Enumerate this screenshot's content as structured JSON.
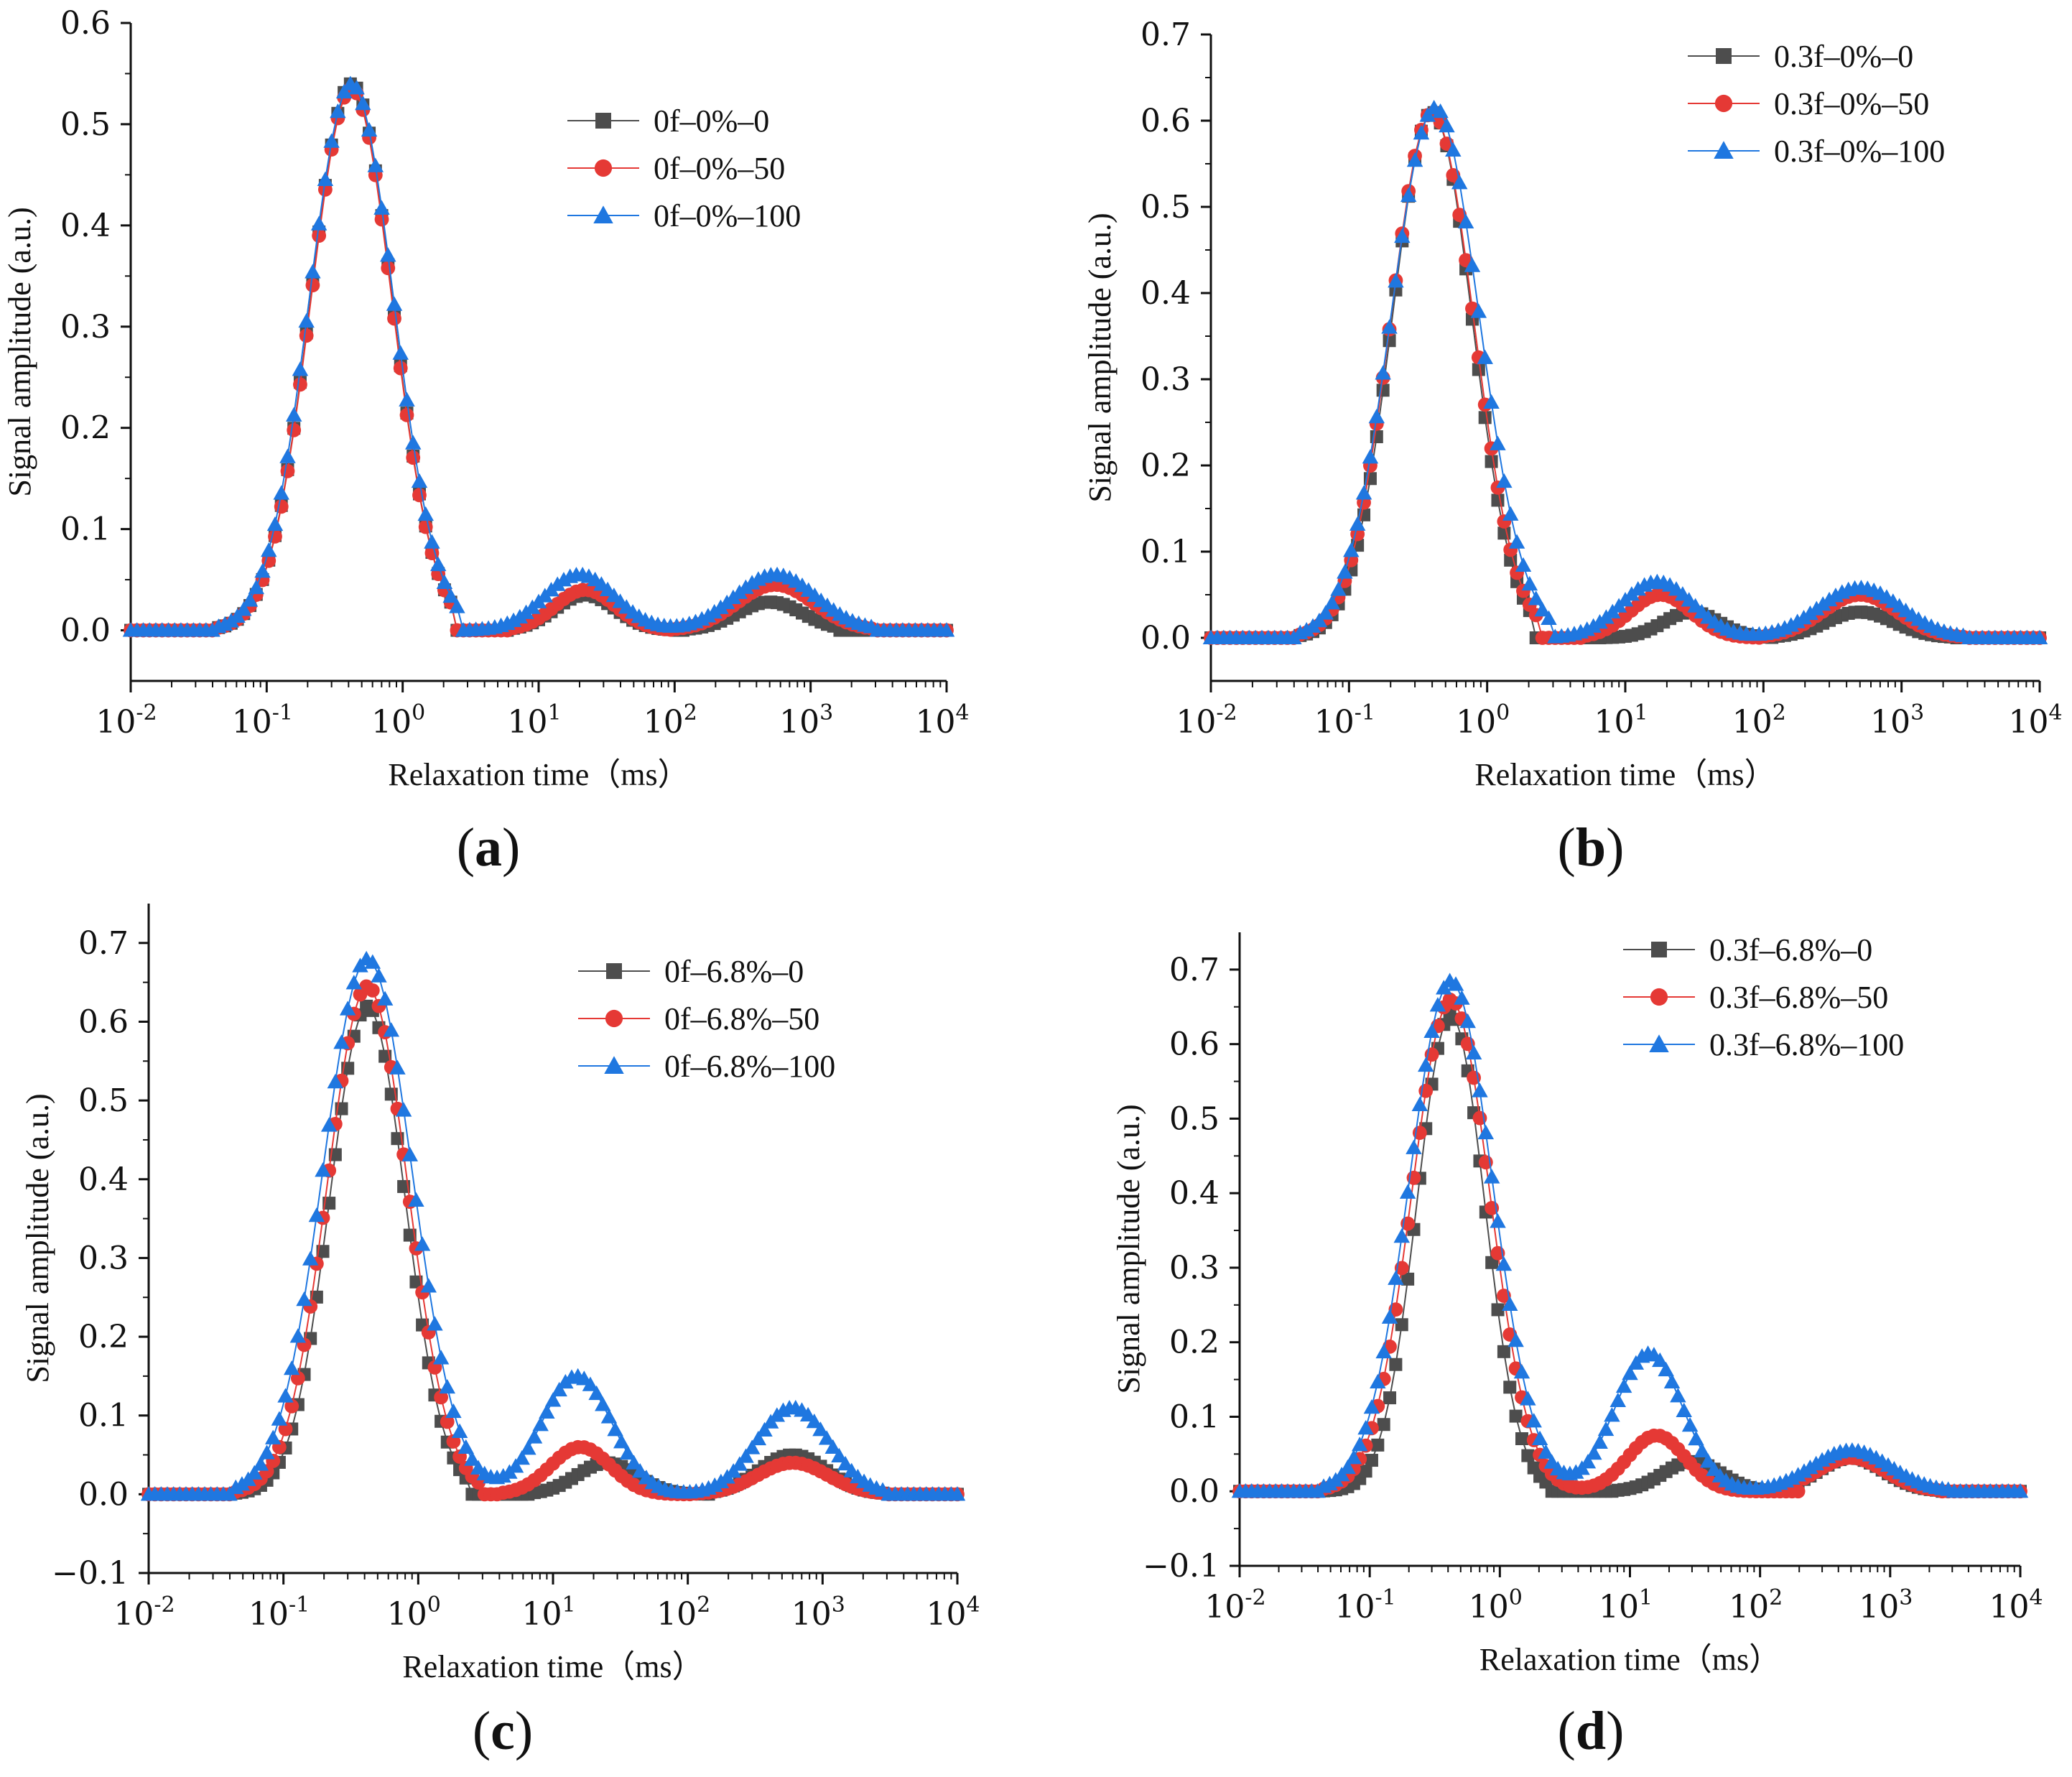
{
  "colors": {
    "series_0": "#4d4d4d",
    "series_50": "#e53935",
    "series_100": "#1f77e0"
  },
  "chart_data": [
    {
      "id": "a",
      "type": "scatter",
      "panel_label": "a",
      "xscale": "log",
      "xlim": [
        0.01,
        10000
      ],
      "ylim": [
        -0.05,
        0.6
      ],
      "yticks": [
        0,
        0.1,
        0.2,
        0.3,
        0.4,
        0.5,
        0.6
      ],
      "xlabel": "Relaxation time（ms）",
      "ylabel": "Signal amplitude (a.u.)",
      "legend_position": "top-right",
      "series": [
        {
          "name": "0f–0%–0",
          "marker": "square",
          "color": "#4d4d4d",
          "peaks": [
            {
              "x": 0.42,
              "amp": 0.54,
              "w": 0.3,
              "lo": 0.04,
              "hi": 2.3
            },
            {
              "x": 22,
              "amp": 0.035,
              "w": 0.22,
              "lo": 6,
              "hi": 100
            },
            {
              "x": 500,
              "amp": 0.028,
              "w": 0.24,
              "lo": 120,
              "hi": 1500
            }
          ]
        },
        {
          "name": "0f–0%–50",
          "marker": "circle",
          "color": "#e53935",
          "peaks": [
            {
              "x": 0.42,
              "amp": 0.535,
              "w": 0.3,
              "lo": 0.04,
              "hi": 2.3
            },
            {
              "x": 22,
              "amp": 0.04,
              "w": 0.22,
              "lo": 6,
              "hi": 100
            },
            {
              "x": 550,
              "amp": 0.045,
              "w": 0.28,
              "lo": 100,
              "hi": 3000
            }
          ]
        },
        {
          "name": "0f–0%–100",
          "marker": "triangle",
          "color": "#1f77e0",
          "peaks": [
            {
              "x": 0.42,
              "amp": 0.54,
              "w": 0.31,
              "lo": 0.04,
              "hi": 2.6
            },
            {
              "x": 20,
              "amp": 0.055,
              "w": 0.26,
              "lo": 3,
              "hi": 3000
            },
            {
              "x": 550,
              "amp": 0.055,
              "w": 0.3,
              "lo": 3,
              "hi": 3000
            }
          ]
        }
      ]
    },
    {
      "id": "b",
      "type": "scatter",
      "panel_label": "b",
      "xscale": "log",
      "xlim": [
        0.01,
        10000
      ],
      "ylim": [
        -0.05,
        0.7
      ],
      "yticks": [
        0,
        0.1,
        0.2,
        0.3,
        0.4,
        0.5,
        0.6,
        0.7
      ],
      "xlabel": "Relaxation time（ms）",
      "ylabel": "Signal amplitude (a.u.)",
      "legend_position": "top-right",
      "series": [
        {
          "name": "0.3f–0%–0",
          "marker": "square",
          "color": "#4d4d4d",
          "peaks": [
            {
              "x": 0.4,
              "amp": 0.61,
              "w": 0.29,
              "lo": 0.04,
              "hi": 2.1
            },
            {
              "x": 30,
              "amp": 0.03,
              "w": 0.2,
              "lo": 7,
              "hi": 120
            },
            {
              "x": 500,
              "amp": 0.03,
              "w": 0.25,
              "lo": 120,
              "hi": 2500
            }
          ]
        },
        {
          "name": "0.3f–0%–50",
          "marker": "circle",
          "color": "#e53935",
          "peaks": [
            {
              "x": 0.4,
              "amp": 0.61,
              "w": 0.3,
              "lo": 0.04,
              "hi": 2.5
            },
            {
              "x": 18,
              "amp": 0.05,
              "w": 0.22,
              "lo": 5,
              "hi": 100
            },
            {
              "x": 500,
              "amp": 0.05,
              "w": 0.27,
              "lo": 100,
              "hi": 3000
            }
          ]
        },
        {
          "name": "0.3f–0%–100",
          "marker": "triangle",
          "color": "#1f77e0",
          "peaks": [
            {
              "x": 0.42,
              "amp": 0.615,
              "w": 0.32,
              "lo": 0.04,
              "hi": 2.8
            },
            {
              "x": 17,
              "amp": 0.065,
              "w": 0.26,
              "lo": 3,
              "hi": 3000
            },
            {
              "x": 500,
              "amp": 0.058,
              "w": 0.3,
              "lo": 3,
              "hi": 3000
            }
          ]
        }
      ]
    },
    {
      "id": "c",
      "type": "scatter",
      "panel_label": "c",
      "xscale": "log",
      "xlim": [
        0.01,
        10000
      ],
      "ylim": [
        -0.1,
        0.75
      ],
      "yticks": [
        -0.1,
        0,
        0.1,
        0.2,
        0.3,
        0.4,
        0.5,
        0.6,
        0.7
      ],
      "xlabel": "Relaxation time（ms）",
      "ylabel": "Signal amplitude (a.u.)",
      "legend_position": "top-right",
      "series": [
        {
          "name": "0f–6.8%–0",
          "marker": "square",
          "color": "#4d4d4d",
          "peaks": [
            {
              "x": 0.42,
              "amp": 0.62,
              "w": 0.28,
              "lo": 0.04,
              "hi": 2.5
            },
            {
              "x": 25,
              "amp": 0.04,
              "w": 0.22,
              "lo": 7,
              "hi": 150
            },
            {
              "x": 600,
              "amp": 0.05,
              "w": 0.25,
              "lo": 150,
              "hi": 3000
            }
          ]
        },
        {
          "name": "0f–6.8%–50",
          "marker": "circle",
          "color": "#e53935",
          "peaks": [
            {
              "x": 0.42,
              "amp": 0.645,
              "w": 0.3,
              "lo": 0.04,
              "hi": 2.9
            },
            {
              "x": 16,
              "amp": 0.06,
              "w": 0.22,
              "lo": 4,
              "hi": 110
            },
            {
              "x": 600,
              "amp": 0.04,
              "w": 0.26,
              "lo": 110,
              "hi": 3000
            }
          ]
        },
        {
          "name": "0f–6.8%–100",
          "marker": "triangle",
          "color": "#1f77e0",
          "peaks": [
            {
              "x": 0.42,
              "amp": 0.68,
              "w": 0.33,
              "lo": 0.04,
              "hi": 3000
            },
            {
              "x": 15,
              "amp": 0.15,
              "w": 0.26,
              "lo": 0.04,
              "hi": 3000
            },
            {
              "x": 600,
              "amp": 0.11,
              "w": 0.27,
              "lo": 0.04,
              "hi": 3000
            }
          ]
        }
      ]
    },
    {
      "id": "d",
      "type": "scatter",
      "panel_label": "d",
      "xscale": "log",
      "xlim": [
        0.01,
        10000
      ],
      "ylim": [
        -0.1,
        0.75
      ],
      "yticks": [
        -0.1,
        0,
        0.1,
        0.2,
        0.3,
        0.4,
        0.5,
        0.6,
        0.7
      ],
      "xlabel": "Relaxation time（ms）",
      "ylabel": "Signal amplitude (a.u.)",
      "legend_position": "top-right",
      "series": [
        {
          "name": "0.3f–6.8%–0",
          "marker": "square",
          "color": "#4d4d4d",
          "peaks": [
            {
              "x": 0.42,
              "amp": 0.64,
              "w": 0.26,
              "lo": 0.04,
              "hi": 2.3
            },
            {
              "x": 30,
              "amp": 0.04,
              "w": 0.22,
              "lo": 8,
              "hi": 180
            },
            {
              "x": 500,
              "amp": 0.045,
              "w": 0.25,
              "lo": 180,
              "hi": 2500
            }
          ]
        },
        {
          "name": "0.3f–6.8%–50",
          "marker": "circle",
          "color": "#e53935",
          "peaks": [
            {
              "x": 0.42,
              "amp": 0.66,
              "w": 0.3,
              "lo": 0.04,
              "hi": 200
            },
            {
              "x": 16,
              "amp": 0.075,
              "w": 0.22,
              "lo": 0.04,
              "hi": 200
            },
            {
              "x": 500,
              "amp": 0.045,
              "w": 0.26,
              "lo": 200,
              "hi": 2500
            }
          ]
        },
        {
          "name": "0.3f–6.8%–100",
          "marker": "triangle",
          "color": "#1f77e0",
          "peaks": [
            {
              "x": 0.42,
              "amp": 0.685,
              "w": 0.32,
              "lo": 0.04,
              "hi": 3000
            },
            {
              "x": 14,
              "amp": 0.185,
              "w": 0.26,
              "lo": 0.04,
              "hi": 3000
            },
            {
              "x": 500,
              "amp": 0.055,
              "w": 0.3,
              "lo": 0.04,
              "hi": 3000
            }
          ]
        }
      ]
    }
  ]
}
